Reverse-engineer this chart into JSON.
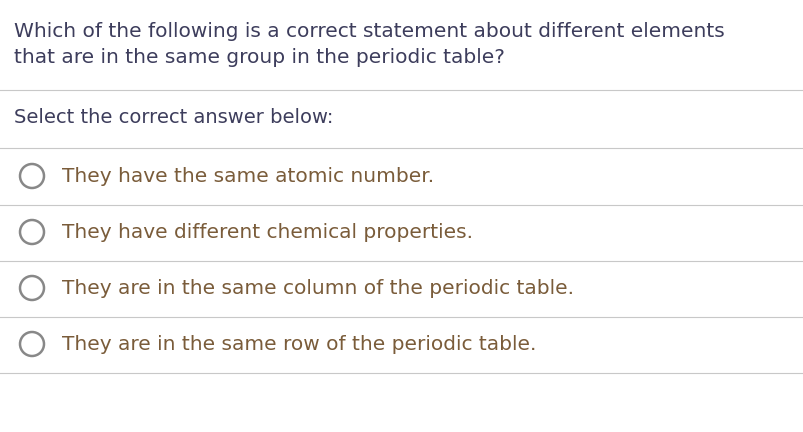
{
  "background_color": "#ffffff",
  "line_color": "#c8c8c8",
  "question_text_line1": "Which of the following is a correct statement about different elements",
  "question_text_line2": "that are in the same group in the periodic table?",
  "prompt_text": "Select the correct answer below:",
  "options": [
    "They have the same atomic number.",
    "They have different chemical properties.",
    "They are in the same column of the periodic table.",
    "They are in the same row of the periodic table."
  ],
  "question_color": "#3d3d5c",
  "option_text_color": "#7a5c3a",
  "prompt_color": "#3d3d5c",
  "circle_color": "#888888",
  "font_size_question": 14.5,
  "font_size_prompt": 14.0,
  "font_size_option": 14.5,
  "line_width": 0.8,
  "fig_width": 8.04,
  "fig_height": 4.32,
  "dpi": 100
}
